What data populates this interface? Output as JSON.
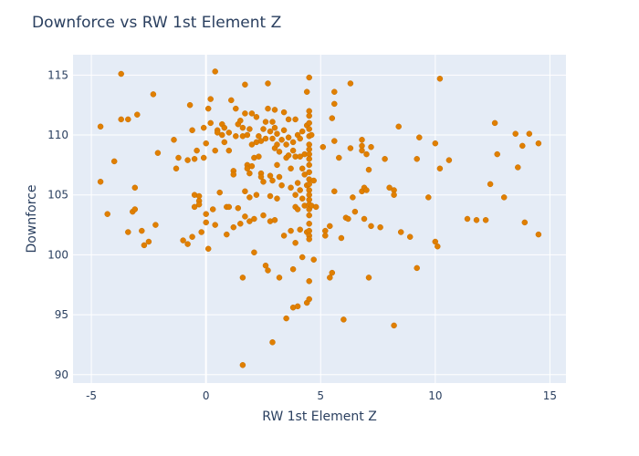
{
  "chart_data": {
    "type": "scatter",
    "title": "Downforce vs RW 1st Element Z",
    "xlabel": "RW 1st Element Z",
    "ylabel": "Downforce",
    "xlim": [
      -5.8,
      15.7
    ],
    "ylim": [
      89.3,
      116.7
    ],
    "xticks": [
      -5,
      0,
      5,
      10,
      15
    ],
    "yticks": [
      90,
      95,
      100,
      105,
      110,
      115
    ],
    "grid": true,
    "colors": {
      "marker": "#e07f00",
      "plot_bg": "#e5ecf6",
      "grid": "#ffffff",
      "text": "#2a3f5f"
    },
    "points": [
      [
        -4.6,
        110.7
      ],
      [
        -4.6,
        106.1
      ],
      [
        -4.3,
        103.4
      ],
      [
        -4.0,
        107.8
      ],
      [
        -3.7,
        115.1
      ],
      [
        -3.7,
        111.3
      ],
      [
        -3.4,
        111.3
      ],
      [
        -3.4,
        101.9
      ],
      [
        -3.2,
        103.6
      ],
      [
        -3.1,
        103.8
      ],
      [
        -3.1,
        105.6
      ],
      [
        -3.0,
        111.7
      ],
      [
        -2.8,
        102.0
      ],
      [
        -2.7,
        100.8
      ],
      [
        -2.5,
        101.1
      ],
      [
        -2.3,
        113.4
      ],
      [
        -2.2,
        102.5
      ],
      [
        -2.1,
        108.5
      ],
      [
        -1.4,
        109.6
      ],
      [
        -1.3,
        107.2
      ],
      [
        -1.2,
        108.1
      ],
      [
        -1.0,
        101.2
      ],
      [
        -0.8,
        107.9
      ],
      [
        -0.8,
        100.9
      ],
      [
        -0.7,
        112.5
      ],
      [
        -0.6,
        101.5
      ],
      [
        -0.6,
        110.4
      ],
      [
        -0.5,
        108.0
      ],
      [
        -0.5,
        105.0
      ],
      [
        -0.5,
        104.0
      ],
      [
        -0.4,
        108.7
      ],
      [
        -0.3,
        104.9
      ],
      [
        -0.3,
        104.5
      ],
      [
        -0.3,
        104.2
      ],
      [
        -0.2,
        101.9
      ],
      [
        -0.1,
        108.1
      ],
      [
        -0.1,
        110.6
      ],
      [
        0.0,
        109.3
      ],
      [
        0.0,
        103.4
      ],
      [
        0.0,
        102.7
      ],
      [
        0.1,
        100.5
      ],
      [
        0.1,
        112.2
      ],
      [
        0.2,
        111.0
      ],
      [
        0.2,
        113.0
      ],
      [
        0.3,
        103.8
      ],
      [
        0.4,
        102.5
      ],
      [
        0.4,
        115.3
      ],
      [
        0.4,
        108.7
      ],
      [
        0.5,
        110.4
      ],
      [
        0.5,
        110.2
      ],
      [
        0.6,
        105.2
      ],
      [
        0.7,
        110.9
      ],
      [
        0.7,
        110.0
      ],
      [
        0.8,
        109.4
      ],
      [
        0.8,
        110.6
      ],
      [
        0.9,
        104.0
      ],
      [
        0.9,
        101.7
      ],
      [
        1.0,
        108.7
      ],
      [
        1.0,
        110.2
      ],
      [
        1.0,
        104.0
      ],
      [
        1.1,
        112.9
      ],
      [
        1.2,
        102.3
      ],
      [
        1.2,
        107.0
      ],
      [
        1.2,
        106.7
      ],
      [
        1.3,
        109.9
      ],
      [
        1.3,
        112.2
      ],
      [
        1.4,
        110.9
      ],
      [
        1.4,
        103.9
      ],
      [
        1.5,
        111.2
      ],
      [
        1.5,
        102.6
      ],
      [
        1.6,
        110.6
      ],
      [
        1.6,
        109.9
      ],
      [
        1.6,
        98.1
      ],
      [
        1.6,
        90.8
      ],
      [
        1.7,
        114.2
      ],
      [
        1.7,
        111.8
      ],
      [
        1.7,
        105.3
      ],
      [
        1.7,
        103.2
      ],
      [
        1.8,
        110.0
      ],
      [
        1.8,
        107.5
      ],
      [
        1.8,
        107.2
      ],
      [
        1.9,
        110.5
      ],
      [
        1.9,
        106.8
      ],
      [
        1.9,
        102.8
      ],
      [
        1.9,
        104.8
      ],
      [
        2.0,
        111.8
      ],
      [
        2.0,
        107.4
      ],
      [
        2.0,
        109.2
      ],
      [
        2.1,
        108.1
      ],
      [
        2.1,
        100.2
      ],
      [
        2.1,
        103.0
      ],
      [
        2.2,
        111.5
      ],
      [
        2.2,
        109.4
      ],
      [
        2.2,
        105.0
      ],
      [
        2.3,
        109.9
      ],
      [
        2.3,
        108.2
      ],
      [
        2.4,
        109.5
      ],
      [
        2.4,
        106.8
      ],
      [
        2.4,
        106.5
      ],
      [
        2.5,
        110.5
      ],
      [
        2.5,
        106.1
      ],
      [
        2.5,
        103.3
      ],
      [
        2.6,
        111.1
      ],
      [
        2.6,
        109.7
      ],
      [
        2.6,
        99.1
      ],
      [
        2.7,
        114.3
      ],
      [
        2.7,
        112.2
      ],
      [
        2.7,
        98.7
      ],
      [
        2.8,
        110.3
      ],
      [
        2.8,
        106.6
      ],
      [
        2.8,
        104.9
      ],
      [
        2.8,
        102.8
      ],
      [
        2.9,
        111.1
      ],
      [
        2.9,
        109.7
      ],
      [
        2.9,
        106.2
      ],
      [
        2.9,
        92.7
      ],
      [
        3.0,
        112.1
      ],
      [
        3.0,
        110.6
      ],
      [
        3.0,
        108.9
      ],
      [
        3.0,
        102.9
      ],
      [
        3.1,
        110.1
      ],
      [
        3.1,
        109.2
      ],
      [
        3.1,
        107.5
      ],
      [
        3.1,
        104.7
      ],
      [
        3.2,
        108.6
      ],
      [
        3.2,
        106.5
      ],
      [
        3.2,
        98.1
      ],
      [
        3.3,
        109.6
      ],
      [
        3.3,
        105.8
      ],
      [
        3.4,
        111.9
      ],
      [
        3.4,
        110.4
      ],
      [
        3.4,
        101.6
      ],
      [
        3.5,
        109.2
      ],
      [
        3.5,
        108.1
      ],
      [
        3.5,
        94.7
      ],
      [
        3.6,
        111.3
      ],
      [
        3.6,
        109.8
      ],
      [
        3.6,
        108.3
      ],
      [
        3.7,
        107.2
      ],
      [
        3.7,
        105.6
      ],
      [
        3.7,
        102.0
      ],
      [
        3.8,
        109.4
      ],
      [
        3.8,
        108.7
      ],
      [
        3.8,
        98.8
      ],
      [
        3.8,
        95.6
      ],
      [
        3.9,
        111.3
      ],
      [
        3.9,
        108.2
      ],
      [
        3.9,
        105.0
      ],
      [
        3.9,
        104.0
      ],
      [
        3.9,
        101.0
      ],
      [
        4.0,
        110.0
      ],
      [
        4.0,
        106.0
      ],
      [
        4.0,
        103.8
      ],
      [
        4.0,
        95.7
      ],
      [
        4.1,
        109.7
      ],
      [
        4.1,
        108.2
      ],
      [
        4.1,
        105.4
      ],
      [
        4.1,
        102.1
      ],
      [
        4.2,
        110.3
      ],
      [
        4.2,
        107.2
      ],
      [
        4.2,
        104.7
      ],
      [
        4.2,
        99.8
      ],
      [
        4.3,
        108.4
      ],
      [
        4.3,
        106.7
      ],
      [
        4.3,
        104.1
      ],
      [
        4.4,
        113.6
      ],
      [
        4.4,
        110.8
      ],
      [
        4.4,
        105.8
      ],
      [
        4.4,
        101.9
      ],
      [
        4.4,
        96.0
      ],
      [
        4.5,
        114.8
      ],
      [
        4.5,
        112.0
      ],
      [
        4.5,
        111.6
      ],
      [
        4.5,
        111.0
      ],
      [
        4.5,
        110.5
      ],
      [
        4.5,
        109.9
      ],
      [
        4.5,
        109.2
      ],
      [
        4.5,
        108.8
      ],
      [
        4.5,
        108.4
      ],
      [
        4.5,
        108.0
      ],
      [
        4.5,
        107.5
      ],
      [
        4.5,
        106.9
      ],
      [
        4.5,
        106.3
      ],
      [
        4.5,
        105.9
      ],
      [
        4.5,
        105.4
      ],
      [
        4.5,
        105.0
      ],
      [
        4.5,
        104.6
      ],
      [
        4.5,
        104.2
      ],
      [
        4.5,
        103.8
      ],
      [
        4.5,
        103.3
      ],
      [
        4.5,
        102.6
      ],
      [
        4.5,
        102.0
      ],
      [
        4.5,
        101.6
      ],
      [
        4.5,
        101.3
      ],
      [
        4.5,
        97.8
      ],
      [
        4.5,
        96.3
      ],
      [
        4.6,
        110.0
      ],
      [
        4.6,
        104.1
      ],
      [
        4.7,
        106.2
      ],
      [
        4.7,
        99.6
      ],
      [
        4.8,
        104.0
      ],
      [
        5.1,
        109.0
      ],
      [
        5.2,
        102.0
      ],
      [
        5.2,
        101.6
      ],
      [
        5.4,
        102.4
      ],
      [
        5.4,
        98.1
      ],
      [
        5.5,
        111.4
      ],
      [
        5.5,
        98.5
      ],
      [
        5.6,
        113.6
      ],
      [
        5.6,
        112.6
      ],
      [
        5.6,
        109.5
      ],
      [
        5.6,
        105.3
      ],
      [
        5.8,
        108.1
      ],
      [
        5.9,
        101.4
      ],
      [
        6.0,
        94.6
      ],
      [
        6.1,
        103.1
      ],
      [
        6.2,
        103.0
      ],
      [
        6.3,
        114.3
      ],
      [
        6.3,
        108.9
      ],
      [
        6.4,
        104.8
      ],
      [
        6.5,
        103.6
      ],
      [
        6.8,
        109.6
      ],
      [
        6.8,
        109.1
      ],
      [
        6.8,
        108.7
      ],
      [
        6.8,
        105.3
      ],
      [
        6.9,
        105.6
      ],
      [
        6.9,
        103.0
      ],
      [
        7.0,
        105.4
      ],
      [
        7.0,
        108.4
      ],
      [
        7.1,
        107.1
      ],
      [
        7.1,
        98.1
      ],
      [
        7.2,
        109.0
      ],
      [
        7.2,
        102.4
      ],
      [
        7.6,
        102.3
      ],
      [
        7.8,
        108.0
      ],
      [
        8.0,
        105.6
      ],
      [
        8.2,
        105.4
      ],
      [
        8.2,
        105.0
      ],
      [
        8.2,
        94.1
      ],
      [
        8.4,
        110.7
      ],
      [
        8.5,
        101.9
      ],
      [
        8.9,
        101.5
      ],
      [
        9.2,
        108.0
      ],
      [
        9.2,
        98.9
      ],
      [
        9.3,
        109.8
      ],
      [
        9.7,
        104.8
      ],
      [
        10.0,
        109.3
      ],
      [
        10.0,
        101.1
      ],
      [
        10.1,
        100.7
      ],
      [
        10.2,
        107.2
      ],
      [
        10.2,
        114.7
      ],
      [
        10.6,
        107.9
      ],
      [
        11.4,
        103.0
      ],
      [
        11.8,
        102.9
      ],
      [
        12.2,
        102.9
      ],
      [
        12.4,
        105.9
      ],
      [
        12.6,
        111.0
      ],
      [
        12.7,
        108.4
      ],
      [
        13.0,
        104.8
      ],
      [
        13.5,
        110.1
      ],
      [
        13.6,
        107.3
      ],
      [
        13.8,
        109.1
      ],
      [
        13.9,
        102.7
      ],
      [
        14.1,
        110.1
      ],
      [
        14.5,
        109.3
      ],
      [
        14.5,
        101.7
      ]
    ]
  }
}
